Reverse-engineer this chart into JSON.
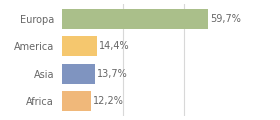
{
  "categories": [
    "Europa",
    "America",
    "Asia",
    "Africa"
  ],
  "values": [
    59.7,
    14.4,
    13.7,
    12.2
  ],
  "labels": [
    "59,7%",
    "14,4%",
    "13,7%",
    "12,2%"
  ],
  "bar_colors": [
    "#aabf8a",
    "#f5c76e",
    "#7f94c0",
    "#f0b87a"
  ],
  "xlim": [
    0,
    72
  ],
  "background_color": "#ffffff",
  "grid_color": "#d8d8d8",
  "label_fontsize": 7.0,
  "tick_fontsize": 7.0,
  "bar_height": 0.72,
  "grid_lines": [
    25,
    50
  ],
  "text_color": "#666666"
}
